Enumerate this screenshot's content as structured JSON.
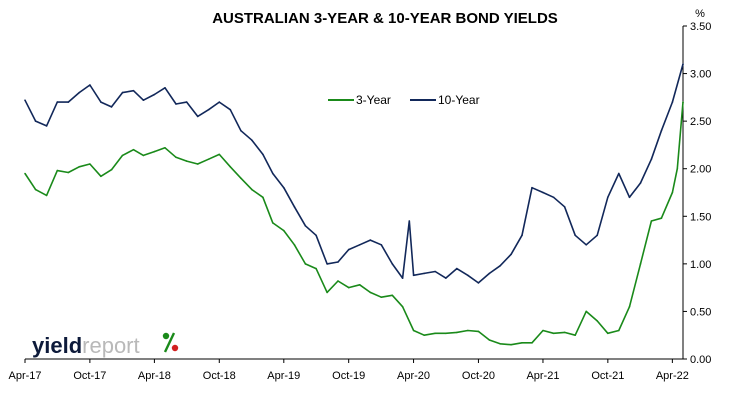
{
  "chart_data": {
    "type": "line",
    "title": "AUSTRALIAN 3-YEAR & 10-YEAR BOND YIELDS",
    "y_unit": "%",
    "xlabel": "",
    "ylabel": "",
    "ylim": [
      0,
      3.5
    ],
    "y_ticks": [
      "0.00",
      "0.50",
      "1.00",
      "1.50",
      "2.00",
      "2.50",
      "3.00",
      "3.50"
    ],
    "x_range": [
      "2017-04-01",
      "2022-05-01"
    ],
    "x_ticks": [
      "Apr-17",
      "Oct-17",
      "Apr-18",
      "Oct-18",
      "Apr-19",
      "Oct-19",
      "Apr-20",
      "Oct-20",
      "Apr-21",
      "Oct-21",
      "Apr-22"
    ],
    "x_tick_dates": [
      "2017-04-01",
      "2017-10-01",
      "2018-04-01",
      "2018-10-01",
      "2019-04-01",
      "2019-10-01",
      "2020-04-01",
      "2020-10-01",
      "2021-04-01",
      "2021-10-01",
      "2022-04-01"
    ],
    "grid": false,
    "y_axis_position": "right",
    "legend_position": "top-center",
    "series": [
      {
        "name": "3-Year",
        "color": "#1a8a1a",
        "points": [
          [
            "2017-04-01",
            1.95
          ],
          [
            "2017-05-01",
            1.78
          ],
          [
            "2017-06-01",
            1.72
          ],
          [
            "2017-07-01",
            1.98
          ],
          [
            "2017-08-01",
            1.96
          ],
          [
            "2017-09-01",
            2.02
          ],
          [
            "2017-10-01",
            2.05
          ],
          [
            "2017-11-01",
            1.92
          ],
          [
            "2017-12-01",
            1.99
          ],
          [
            "2018-01-01",
            2.14
          ],
          [
            "2018-02-01",
            2.2
          ],
          [
            "2018-03-01",
            2.14
          ],
          [
            "2018-04-01",
            2.18
          ],
          [
            "2018-05-01",
            2.22
          ],
          [
            "2018-06-01",
            2.12
          ],
          [
            "2018-07-01",
            2.08
          ],
          [
            "2018-08-01",
            2.05
          ],
          [
            "2018-09-01",
            2.1
          ],
          [
            "2018-10-01",
            2.15
          ],
          [
            "2018-11-01",
            2.02
          ],
          [
            "2018-12-01",
            1.9
          ],
          [
            "2019-01-01",
            1.78
          ],
          [
            "2019-02-01",
            1.7
          ],
          [
            "2019-03-01",
            1.43
          ],
          [
            "2019-04-01",
            1.35
          ],
          [
            "2019-05-01",
            1.2
          ],
          [
            "2019-06-01",
            1.0
          ],
          [
            "2019-07-01",
            0.95
          ],
          [
            "2019-08-01",
            0.7
          ],
          [
            "2019-09-01",
            0.82
          ],
          [
            "2019-10-01",
            0.75
          ],
          [
            "2019-11-01",
            0.78
          ],
          [
            "2019-12-01",
            0.7
          ],
          [
            "2020-01-01",
            0.65
          ],
          [
            "2020-02-01",
            0.67
          ],
          [
            "2020-03-01",
            0.55
          ],
          [
            "2020-04-01",
            0.3
          ],
          [
            "2020-05-01",
            0.25
          ],
          [
            "2020-06-01",
            0.27
          ],
          [
            "2020-07-01",
            0.27
          ],
          [
            "2020-08-01",
            0.28
          ],
          [
            "2020-09-01",
            0.3
          ],
          [
            "2020-10-01",
            0.29
          ],
          [
            "2020-11-01",
            0.2
          ],
          [
            "2020-12-01",
            0.16
          ],
          [
            "2021-01-01",
            0.15
          ],
          [
            "2021-02-01",
            0.17
          ],
          [
            "2021-03-01",
            0.17
          ],
          [
            "2021-04-01",
            0.3
          ],
          [
            "2021-05-01",
            0.27
          ],
          [
            "2021-06-01",
            0.28
          ],
          [
            "2021-07-01",
            0.25
          ],
          [
            "2021-08-01",
            0.5
          ],
          [
            "2021-09-01",
            0.4
          ],
          [
            "2021-10-01",
            0.27
          ],
          [
            "2021-11-01",
            0.3
          ],
          [
            "2021-12-01",
            0.55
          ],
          [
            "2022-01-01",
            1.0
          ],
          [
            "2022-02-01",
            1.45
          ],
          [
            "2022-03-01",
            1.48
          ],
          [
            "2022-04-01",
            1.75
          ],
          [
            "2022-04-15",
            2.0
          ],
          [
            "2022-05-01",
            2.7
          ]
        ]
      },
      {
        "name": "10-Year",
        "color": "#12285a",
        "points": [
          [
            "2017-04-01",
            2.72
          ],
          [
            "2017-05-01",
            2.5
          ],
          [
            "2017-06-01",
            2.45
          ],
          [
            "2017-07-01",
            2.7
          ],
          [
            "2017-08-01",
            2.7
          ],
          [
            "2017-09-01",
            2.8
          ],
          [
            "2017-10-01",
            2.88
          ],
          [
            "2017-11-01",
            2.7
          ],
          [
            "2017-12-01",
            2.65
          ],
          [
            "2018-01-01",
            2.8
          ],
          [
            "2018-02-01",
            2.82
          ],
          [
            "2018-03-01",
            2.72
          ],
          [
            "2018-04-01",
            2.78
          ],
          [
            "2018-05-01",
            2.85
          ],
          [
            "2018-06-01",
            2.68
          ],
          [
            "2018-07-01",
            2.7
          ],
          [
            "2018-08-01",
            2.55
          ],
          [
            "2018-09-01",
            2.62
          ],
          [
            "2018-10-01",
            2.7
          ],
          [
            "2018-11-01",
            2.62
          ],
          [
            "2018-12-01",
            2.4
          ],
          [
            "2019-01-01",
            2.3
          ],
          [
            "2019-02-01",
            2.15
          ],
          [
            "2019-03-01",
            1.95
          ],
          [
            "2019-04-01",
            1.8
          ],
          [
            "2019-05-01",
            1.6
          ],
          [
            "2019-06-01",
            1.4
          ],
          [
            "2019-07-01",
            1.3
          ],
          [
            "2019-08-01",
            1.0
          ],
          [
            "2019-09-01",
            1.02
          ],
          [
            "2019-10-01",
            1.15
          ],
          [
            "2019-11-01",
            1.2
          ],
          [
            "2019-12-01",
            1.25
          ],
          [
            "2020-01-01",
            1.2
          ],
          [
            "2020-02-01",
            1.0
          ],
          [
            "2020-03-01",
            0.85
          ],
          [
            "2020-03-20",
            1.45
          ],
          [
            "2020-04-01",
            0.88
          ],
          [
            "2020-05-01",
            0.9
          ],
          [
            "2020-06-01",
            0.92
          ],
          [
            "2020-07-01",
            0.85
          ],
          [
            "2020-08-01",
            0.95
          ],
          [
            "2020-09-01",
            0.88
          ],
          [
            "2020-10-01",
            0.8
          ],
          [
            "2020-11-01",
            0.9
          ],
          [
            "2020-12-01",
            0.98
          ],
          [
            "2021-01-01",
            1.1
          ],
          [
            "2021-02-01",
            1.3
          ],
          [
            "2021-03-01",
            1.8
          ],
          [
            "2021-04-01",
            1.75
          ],
          [
            "2021-05-01",
            1.7
          ],
          [
            "2021-06-01",
            1.6
          ],
          [
            "2021-07-01",
            1.3
          ],
          [
            "2021-08-01",
            1.2
          ],
          [
            "2021-09-01",
            1.3
          ],
          [
            "2021-10-01",
            1.7
          ],
          [
            "2021-11-01",
            1.95
          ],
          [
            "2021-12-01",
            1.7
          ],
          [
            "2022-01-01",
            1.85
          ],
          [
            "2022-02-01",
            2.1
          ],
          [
            "2022-03-01",
            2.4
          ],
          [
            "2022-04-01",
            2.7
          ],
          [
            "2022-05-01",
            3.1
          ]
        ]
      }
    ]
  },
  "logo": {
    "part1": "yield",
    "part2": "report",
    "symbol": "%",
    "symbol_colors": [
      "#1a8a1a",
      "#d22020"
    ]
  }
}
